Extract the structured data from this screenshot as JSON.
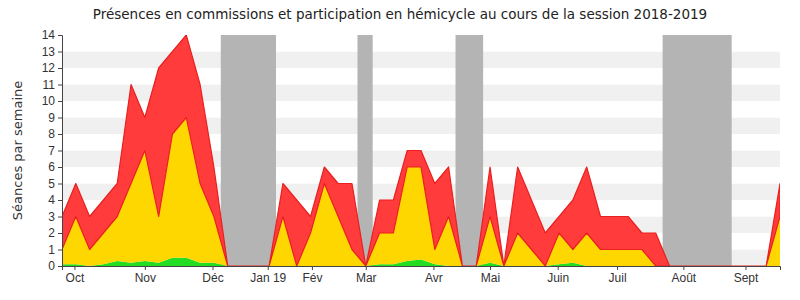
{
  "chart_data": {
    "type": "area",
    "title": "Présences en commissions et participation en hémicycle au cours de la session 2018-2019",
    "y_label": "Séances par semaine",
    "stacked": true,
    "grid": true,
    "x": [
      0,
      1,
      2,
      3,
      4,
      5,
      6,
      7,
      8,
      9,
      10,
      11,
      12,
      13,
      14,
      15,
      16,
      17,
      18,
      19,
      20,
      21,
      22,
      23,
      24,
      25,
      26,
      27,
      28,
      29,
      30,
      31,
      32,
      33,
      34,
      35,
      36,
      37,
      38,
      39,
      40,
      41,
      42,
      43,
      44,
      45,
      46,
      47,
      48,
      49,
      50,
      51,
      52
    ],
    "xlim": [
      0,
      52
    ],
    "xticks": [
      {
        "value": 0.9,
        "label": "Oct"
      },
      {
        "value": 6.0,
        "label": "Nov"
      },
      {
        "value": 10.9,
        "label": "Déc"
      },
      {
        "value": 14.9,
        "label": "Jan 19"
      },
      {
        "value": 18.1,
        "label": "Fév"
      },
      {
        "value": 22.0,
        "label": "Mar"
      },
      {
        "value": 26.9,
        "label": "Avr"
      },
      {
        "value": 31.0,
        "label": "Mai"
      },
      {
        "value": 35.9,
        "label": "Juin"
      },
      {
        "value": 40.2,
        "label": "Juil"
      },
      {
        "value": 45.0,
        "label": "Août"
      },
      {
        "value": 49.5,
        "label": "Sept"
      }
    ],
    "ylim": [
      0,
      14
    ],
    "yticks": [
      0,
      1,
      2,
      3,
      4,
      5,
      6,
      7,
      8,
      9,
      10,
      11,
      12,
      13,
      14
    ],
    "vacations": [
      {
        "start": 11.5,
        "end": 15.5
      },
      {
        "start": 21.4,
        "end": 22.5
      },
      {
        "start": 28.5,
        "end": 30.5
      },
      {
        "start": 43.5,
        "end": 48.5
      }
    ],
    "series": [
      {
        "color": "#22dd22",
        "values": [
          0.1,
          0.1,
          0,
          0.1,
          0.3,
          0.2,
          0.3,
          0.2,
          0.5,
          0.5,
          0.2,
          0.2,
          0,
          0,
          0,
          0,
          0,
          0,
          0,
          0,
          0,
          0,
          0,
          0.1,
          0.1,
          0.3,
          0.4,
          0.1,
          0,
          0,
          0,
          0.2,
          0,
          0,
          0,
          0,
          0.1,
          0.2,
          0,
          0,
          0,
          0,
          0,
          0,
          0,
          0,
          0,
          0,
          0,
          0,
          0,
          0,
          0
        ]
      },
      {
        "color": "#ffd700",
        "values": [
          0.9,
          2.9,
          1,
          1.9,
          2.7,
          4.8,
          6.7,
          2.8,
          7.5,
          8.5,
          4.8,
          2.8,
          0,
          0,
          0,
          0,
          3,
          0,
          2,
          5,
          3,
          1,
          0,
          1.9,
          1.9,
          5.7,
          5.6,
          0.9,
          3,
          0,
          0,
          2.8,
          0,
          2,
          1,
          0,
          1.9,
          0.8,
          2,
          1,
          1,
          1,
          1,
          0,
          0,
          0,
          0,
          0,
          0,
          0,
          0,
          0,
          3
        ]
      },
      {
        "color": "#ff3b3b",
        "values": [
          2,
          2,
          2,
          2,
          2,
          6,
          2,
          9,
          5,
          5,
          6,
          3,
          0,
          0,
          0,
          0,
          2,
          4,
          1,
          1,
          2,
          4,
          0,
          2,
          2,
          1,
          1,
          4,
          3,
          0,
          0,
          3,
          0,
          4,
          3,
          2,
          1,
          3,
          4,
          2,
          2,
          2,
          1,
          2,
          0,
          0,
          0,
          0,
          0,
          0,
          0,
          0,
          2
        ]
      }
    ]
  }
}
